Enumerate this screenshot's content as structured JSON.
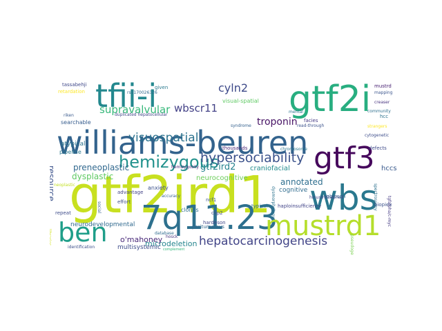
{
  "words": [
    {
      "text": "gtf2ird1",
      "color": "#c8e020"
    },
    {
      "text": "williams-beuren",
      "color": "#33638d"
    },
    {
      "text": "wbs",
      "color": "#2a788e"
    },
    {
      "text": "7q11.23",
      "color": "#2d708e"
    },
    {
      "text": "tfii-i",
      "color": "#23888e"
    },
    {
      "text": "gtf2i",
      "color": "#28ae80"
    },
    {
      "text": "gtf3",
      "color": "#46085c"
    },
    {
      "text": "mustrd1",
      "color": "#b5de2b"
    },
    {
      "text": "ben",
      "color": "#1f9e89"
    },
    {
      "text": "hemizygous",
      "color": "#21918c"
    },
    {
      "text": "hypersociability",
      "color": "#3b528b"
    },
    {
      "text": "hepatocarcinogenesis",
      "color": "#414487"
    },
    {
      "text": "visuospatial",
      "color": "#2c728e"
    },
    {
      "text": "cyln2",
      "color": "#3e4a89"
    },
    {
      "text": "wbscr11",
      "color": "#424086"
    },
    {
      "text": "supravalvular",
      "color": "#35b779"
    },
    {
      "text": "troponin",
      "color": "#471365"
    },
    {
      "text": "gtf2ird2",
      "color": "#26828e"
    },
    {
      "text": "annotated",
      "color": "#2e6e8e"
    },
    {
      "text": "preneoplastic",
      "color": "#31688e"
    },
    {
      "text": "dysplastic",
      "color": "#5ec962"
    },
    {
      "text": "resource",
      "color": "#3b528b"
    },
    {
      "text": "microdeletion",
      "color": "#25858e"
    },
    {
      "text": "o'mahoney",
      "color": "#482878"
    },
    {
      "text": "neurocognitive",
      "color": "#6ccd5a"
    },
    {
      "text": "craniofacial",
      "color": "#228c8d"
    },
    {
      "text": "hccs",
      "color": "#38598c"
    },
    {
      "text": "multisystemic",
      "color": "#3e4c8a"
    },
    {
      "text": "neurodevelopmental",
      "color": "#30698e"
    },
    {
      "text": "cognitive",
      "color": "#2f6c8e"
    },
    {
      "text": "atypical",
      "color": "#2c738e"
    },
    {
      "text": "pipeline",
      "color": "#2a778e"
    },
    {
      "text": "searchable",
      "color": "#365c8d"
    },
    {
      "text": "visual-spatial",
      "color": "#5ec962"
    },
    {
      "text": "retardation",
      "color": "#fde725"
    },
    {
      "text": "tassabehji",
      "color": "#3f4889"
    },
    {
      "text": "given",
      "color": "#29798e"
    },
    {
      "text": "riken",
      "color": "#38598c"
    },
    {
      "text": "mustrd",
      "color": "#482173"
    },
    {
      "text": "mapping",
      "color": "#3a548c"
    },
    {
      "text": "community",
      "color": "#2e6f8e"
    },
    {
      "text": "hcc",
      "color": "#2c728e"
    },
    {
      "text": "facies",
      "color": "#443a83"
    },
    {
      "text": "cytogenetic",
      "color": "#3d4d8a"
    },
    {
      "text": "hmustrd1alpha1",
      "color": "#404588"
    },
    {
      "text": "defects",
      "color": "#3e4a89"
    },
    {
      "text": "robinson",
      "color": "#355f8d"
    },
    {
      "text": "haploinsufficiency",
      "color": "#404387"
    },
    {
      "text": "thousands",
      "color": "#482576"
    },
    {
      "text": "chromosome",
      "color": "#2a768e"
    },
    {
      "text": "ncf1",
      "color": "#39568c"
    },
    {
      "text": "clones",
      "color": "#2c718e"
    },
    {
      "text": "anxiety",
      "color": "#3b518b"
    },
    {
      "text": "advantage",
      "color": "#414287"
    },
    {
      "text": "effort",
      "color": "#3d4e8a"
    },
    {
      "text": "typical",
      "color": "#2d708e"
    },
    {
      "text": "hardeson",
      "color": "#3f4788"
    },
    {
      "text": "hosck",
      "color": "#46327e"
    },
    {
      "text": "clip2",
      "color": "#3e4989"
    },
    {
      "text": "database",
      "color": "#2f6b8e"
    },
    {
      "text": "syndrome",
      "color": "#34608d"
    },
    {
      "text": "spectroscopy",
      "color": "#2d708e"
    },
    {
      "text": "biopiex",
      "color": "#3b528b"
    },
    {
      "text": "tgfalpha/c-myc",
      "color": "#443a83"
    },
    {
      "text": "peritumorous",
      "color": "#31678e"
    },
    {
      "text": "repeat",
      "color": "#3e4c8a"
    },
    {
      "text": "social",
      "color": "#355e8d"
    },
    {
      "text": "mental",
      "color": "#2b748e"
    },
    {
      "text": "neoplastic",
      "color": "#c2df23"
    },
    {
      "text": "duplicated hepatocellular",
      "color": "#404588"
    },
    {
      "text": "identification",
      "color": "#3c4f8a"
    },
    {
      "text": "rs1170026326",
      "color": "#30698e"
    },
    {
      "text": "pseudogene",
      "color": "#7ad151"
    },
    {
      "text": "read-through",
      "color": "#3b528b"
    },
    {
      "text": "hemizygosity",
      "color": "#482475"
    },
    {
      "text": "complement",
      "color": "#31b57b"
    },
    {
      "text": "accuracy",
      "color": "#355f8d"
    },
    {
      "text": "libraries",
      "color": "#d2e21b"
    },
    {
      "text": "dysmorphology",
      "color": "#2c728e"
    },
    {
      "text": "strangers",
      "color": "#fde725"
    },
    {
      "text": "creaser",
      "color": "#46327e"
    }
  ]
}
